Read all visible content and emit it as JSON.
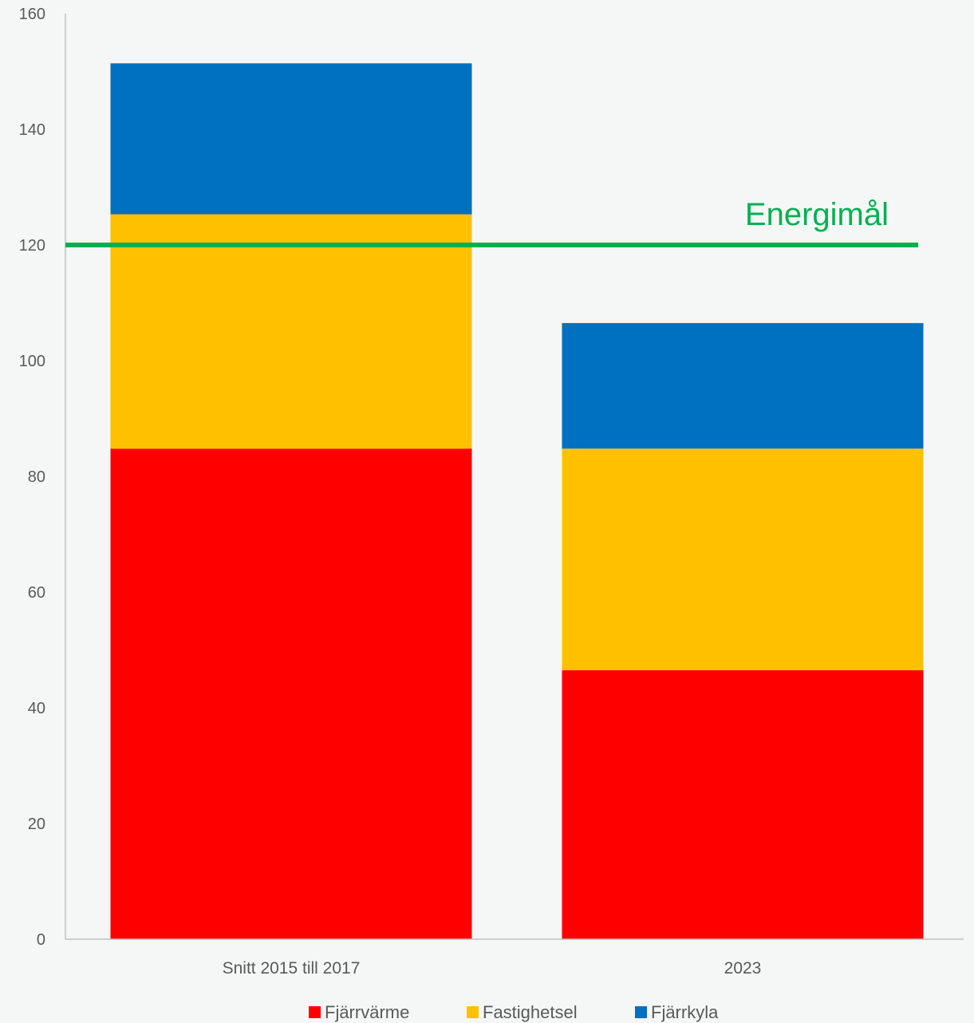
{
  "chart_data": {
    "type": "bar",
    "stacked": true,
    "categories": [
      "Snitt 2015 till 2017",
      "2023"
    ],
    "series": [
      {
        "name": "Fjärrvärme",
        "values": [
          84.8,
          46.5
        ],
        "color": "#ff0000"
      },
      {
        "name": "Fastighetsel",
        "values": [
          40.5,
          38.3
        ],
        "color": "#ffc000"
      },
      {
        "name": "Fjärrkyla",
        "values": [
          26.1,
          21.7
        ],
        "color": "#0070c0"
      }
    ],
    "ylim": [
      0,
      160
    ],
    "yticks": [
      0,
      20,
      40,
      60,
      80,
      100,
      120,
      140,
      160
    ],
    "target": {
      "label": "Energimål",
      "value": 120,
      "color": "#00b050"
    },
    "legend_position": "bottom",
    "grid": false
  }
}
